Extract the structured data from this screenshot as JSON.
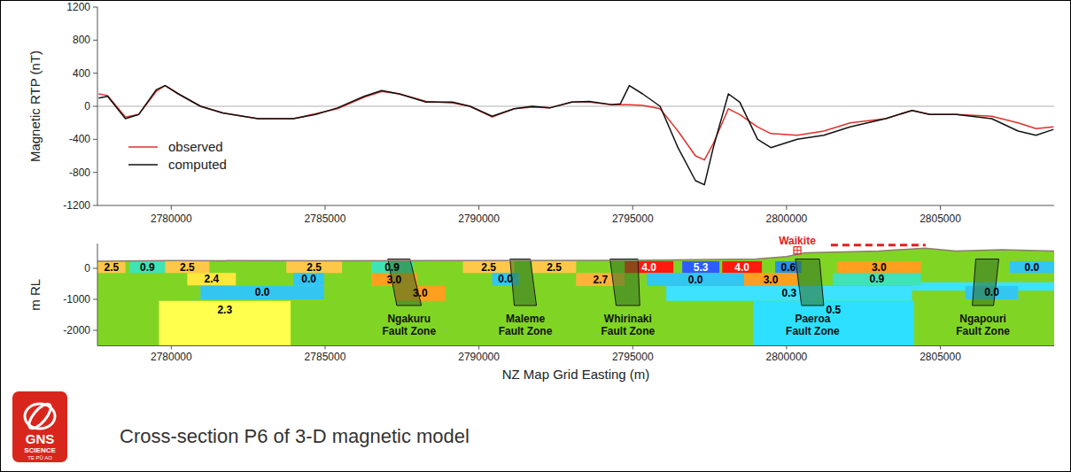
{
  "chart_data": [
    {
      "type": "line",
      "y_label": "Magnetic RTP (nT)",
      "x": [
        2777640,
        2777930,
        2778510,
        2778940,
        2779510,
        2779800,
        2780230,
        2780950,
        2781670,
        2782820,
        2783970,
        2784690,
        2785400,
        2786270,
        2786840,
        2787410,
        2788280,
        2789140,
        2789710,
        2790430,
        2791150,
        2791730,
        2792300,
        2793020,
        2793590,
        2794310,
        2794600,
        2794890,
        2795320,
        2795890,
        2796470,
        2797040,
        2797330,
        2797620,
        2798110,
        2798480,
        2799060,
        2799490,
        2800350,
        2801210,
        2802070,
        2803220,
        2804080,
        2804660,
        2805520,
        2806670,
        2807530,
        2808110,
        2808680
      ],
      "series": [
        {
          "name": "observed",
          "color": "#e0302a",
          "values": [
            150,
            130,
            -130,
            -100,
            180,
            250,
            150,
            0,
            -80,
            -150,
            -150,
            -90,
            -30,
            110,
            180,
            150,
            60,
            40,
            0,
            -130,
            -30,
            -10,
            -20,
            50,
            50,
            20,
            20,
            20,
            10,
            -30,
            -300,
            -600,
            -650,
            -450,
            -30,
            -100,
            -250,
            -330,
            -350,
            -300,
            -200,
            -150,
            -50,
            -100,
            -100,
            -120,
            -200,
            -270,
            -250
          ]
        },
        {
          "name": "computed",
          "color": "#111111",
          "values": [
            100,
            120,
            -150,
            -100,
            200,
            250,
            150,
            0,
            -80,
            -150,
            -150,
            -100,
            -20,
            120,
            190,
            150,
            50,
            50,
            0,
            -120,
            -30,
            0,
            -20,
            50,
            60,
            20,
            30,
            250,
            150,
            0,
            -500,
            -900,
            -950,
            -500,
            150,
            50,
            -400,
            -500,
            -400,
            -350,
            -250,
            -150,
            -50,
            -100,
            -100,
            -150,
            -300,
            -350,
            -280
          ]
        }
      ],
      "xlim": [
        2777600,
        2808700
      ],
      "xticks": [
        2780000,
        2785000,
        2790000,
        2795000,
        2800000,
        2805000
      ],
      "ylim": [
        -1200,
        1200
      ],
      "yticks": [
        -1200,
        -800,
        -400,
        0,
        400,
        800,
        1200
      ],
      "reference_line": 0,
      "legend": "lower left"
    },
    {
      "type": "section",
      "y_label": "m RL",
      "x_label": "NZ Map Grid Easting (m)",
      "xlim": [
        2777600,
        2808700
      ],
      "xticks": [
        2780000,
        2785000,
        2790000,
        2795000,
        2800000,
        2805000
      ],
      "ylim": [
        -2500,
        800
      ],
      "yticks": [
        -2000,
        -1000,
        0
      ],
      "color": "#80d524",
      "topography": {
        "x": [
          2777600,
          2780000,
          2785000,
          2790000,
          2795000,
          2799000,
          2800000,
          2800600,
          2801500,
          2803000,
          2804500,
          2805500,
          2807000,
          2808700
        ],
        "rl": [
          230,
          250,
          240,
          250,
          260,
          300,
          380,
          500,
          520,
          560,
          650,
          560,
          600,
          560
        ]
      },
      "blocks": [
        {
          "label": "2.5",
          "x": [
            2777600,
            2778510
          ],
          "rl": [
            230,
            -150
          ],
          "color": "#ffc84a"
        },
        {
          "label": "0.9",
          "x": [
            2778650,
            2779800
          ],
          "rl": [
            230,
            -150
          ],
          "color": "#3fe3b5"
        },
        {
          "label": "2.5",
          "x": [
            2779800,
            2781240
          ],
          "rl": [
            230,
            -150
          ],
          "color": "#ffc84a"
        },
        {
          "label": "2.4",
          "x": [
            2780520,
            2782100
          ],
          "rl": [
            -150,
            -550
          ],
          "color": "#ffe83c"
        },
        {
          "label": "0.0",
          "x": [
            2780950,
            2784970
          ],
          "rl": [
            -570,
            -1000
          ],
          "color": "#33c6f0"
        },
        {
          "label": "2.3",
          "x": [
            2779600,
            2783880
          ],
          "rl": [
            -1050,
            -2500
          ],
          "color": "#ffff4d"
        },
        {
          "label": "2.5",
          "x": [
            2783740,
            2785550
          ],
          "rl": [
            230,
            -150
          ],
          "color": "#ffc84a"
        },
        {
          "label": "0.0",
          "x": [
            2783970,
            2784970
          ],
          "rl": [
            -150,
            -550
          ],
          "color": "#33c6f0"
        },
        {
          "label": "0.9",
          "x": [
            2786500,
            2787850
          ],
          "rl": [
            230,
            -150
          ],
          "color": "#3fe3b5"
        },
        {
          "label": "3.0",
          "x": [
            2786500,
            2787990
          ],
          "rl": [
            -150,
            -570
          ],
          "color": "#ff9e1f"
        },
        {
          "label": "3.0",
          "x": [
            2787270,
            2788910
          ],
          "rl": [
            -570,
            -1050
          ],
          "color": "#ff9e1f"
        },
        {
          "label": "2.5",
          "x": [
            2789480,
            2791150
          ],
          "rl": [
            230,
            -150
          ],
          "color": "#ffc84a"
        },
        {
          "label": "0.0",
          "x": [
            2790430,
            2791300
          ],
          "rl": [
            -150,
            -550
          ],
          "color": "#33c6f0"
        },
        {
          "label": "2.5",
          "x": [
            2791730,
            2793160
          ],
          "rl": [
            230,
            -150
          ],
          "color": "#ffc84a"
        },
        {
          "label": "2.7",
          "x": [
            2793160,
            2794740
          ],
          "rl": [
            -150,
            -570
          ],
          "color": "#ffb23a"
        },
        {
          "label": "4.0",
          "x": [
            2794740,
            2796320
          ],
          "rl": [
            230,
            -150
          ],
          "color": "#ff1a0f"
        },
        {
          "label": "5.3",
          "x": [
            2796610,
            2797820
          ],
          "rl": [
            230,
            -150
          ],
          "color": "#2f5cff"
        },
        {
          "label": "4.0",
          "x": [
            2797910,
            2799200
          ],
          "rl": [
            230,
            -150
          ],
          "color": "#ff1a0f"
        },
        {
          "label": "0.6",
          "x": [
            2799630,
            2800490
          ],
          "rl": [
            230,
            -150
          ],
          "color": "#2b8fe8"
        },
        {
          "label": "0.0",
          "x": [
            2795460,
            2798620
          ],
          "rl": [
            -150,
            -570
          ],
          "color": "#33c6f0"
        },
        {
          "label": "3.0",
          "x": [
            2798620,
            2800350
          ],
          "rl": [
            -150,
            -570
          ],
          "color": "#ff9e1f"
        },
        {
          "label": "0.3",
          "x": [
            2796090,
            2804080
          ],
          "rl": [
            -570,
            -1050
          ],
          "color": "#3de2ff"
        },
        {
          "label": null,
          "x": [
            2804080,
            2808700
          ],
          "rl": [
            -450,
            -720
          ],
          "color": "#3de2ff"
        },
        {
          "label": "0.5",
          "x": [
            2798910,
            2804140
          ],
          "rl": [
            -1050,
            -2500
          ],
          "color": "#2de0ff"
        },
        {
          "label": "3.0",
          "x": [
            2801640,
            2804370
          ],
          "rl": [
            230,
            -150
          ],
          "color": "#ff9e1f"
        },
        {
          "label": "0.9",
          "x": [
            2801500,
            2804370
          ],
          "rl": [
            -150,
            -550
          ],
          "color": "#3fe3b5"
        },
        {
          "label": "0.0",
          "x": [
            2805810,
            2807530
          ],
          "rl": [
            -570,
            -1000
          ],
          "color": "#33c6f0"
        },
        {
          "label": "0.0",
          "x": [
            2807250,
            2808700
          ],
          "rl": [
            230,
            -150
          ],
          "color": "#33c6f0"
        }
      ],
      "faults": [
        {
          "name": "Ngakuru Fault Zone",
          "x_top": [
            2787040,
            2787760
          ],
          "x_bottom": [
            2787330,
            2788130
          ],
          "rl": [
            300,
            -1200
          ]
        },
        {
          "name": "Maleme Fault Zone",
          "x_top": [
            2791010,
            2791670
          ],
          "x_bottom": [
            2791150,
            2791870
          ],
          "rl": [
            300,
            -1200
          ]
        },
        {
          "name": "Whirinaki Fault Zone",
          "x_top": [
            2794260,
            2795170
          ],
          "x_bottom": [
            2794460,
            2795230
          ],
          "rl": [
            300,
            -1200
          ]
        },
        {
          "name": "Paeroa Fault Zone",
          "x_top": [
            2800290,
            2801070
          ],
          "x_bottom": [
            2800490,
            2801210
          ],
          "rl": [
            300,
            -1200
          ]
        },
        {
          "name": "Ngapouri Fault Zone",
          "x_top": [
            2806150,
            2806900
          ],
          "x_bottom": [
            2806040,
            2806730
          ],
          "rl": [
            300,
            -1200
          ]
        }
      ],
      "annotations": [
        {
          "label": "Waikite",
          "x": 2800350,
          "rl": 580,
          "color": "#e02020",
          "marker": "square"
        }
      ],
      "lines": [
        {
          "x": [
            2801440,
            2804520
          ],
          "rl": [
            750,
            750
          ],
          "color": "#e02020",
          "line_style": "dashed"
        }
      ]
    }
  ],
  "figure": {
    "title": "Cross-section P6 of 3-D magnetic model",
    "logo": [
      "GNS",
      "SCIENCE",
      "TE PŪ AO"
    ]
  }
}
